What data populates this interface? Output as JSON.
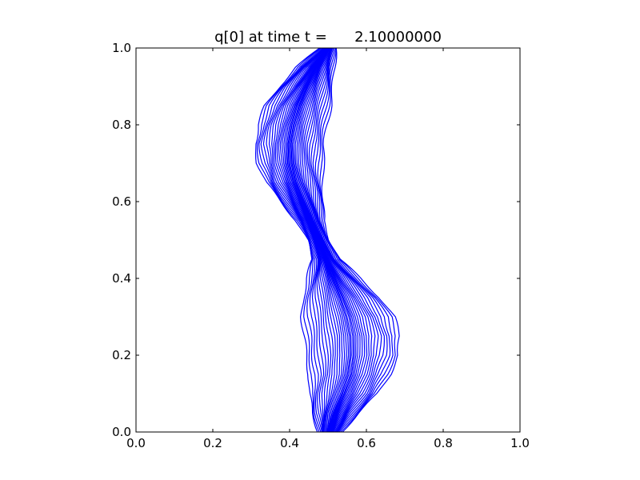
{
  "chart_data": {
    "type": "contour",
    "title": "q[0] at time t =      2.10000000",
    "xlabel": "",
    "ylabel": "",
    "xlim": [
      0.0,
      1.0
    ],
    "ylim": [
      0.0,
      1.0
    ],
    "x_ticks": [
      "0.0",
      "0.2",
      "0.4",
      "0.6",
      "0.8",
      "1.0"
    ],
    "y_ticks": [
      "0.0",
      "0.2",
      "0.4",
      "0.6",
      "0.8",
      "1.0"
    ],
    "line_color": "#0000ff",
    "grid": false,
    "num_contour_levels": 19,
    "centerline": [
      [
        0.505,
        0.0
      ],
      [
        0.52,
        0.05
      ],
      [
        0.54,
        0.1
      ],
      [
        0.556,
        0.15
      ],
      [
        0.563,
        0.2
      ],
      [
        0.562,
        0.25
      ],
      [
        0.552,
        0.3
      ],
      [
        0.535,
        0.35
      ],
      [
        0.515,
        0.4
      ],
      [
        0.495,
        0.45
      ],
      [
        0.475,
        0.5
      ],
      [
        0.453,
        0.55
      ],
      [
        0.432,
        0.6
      ],
      [
        0.413,
        0.65
      ],
      [
        0.402,
        0.7
      ],
      [
        0.4,
        0.75
      ],
      [
        0.408,
        0.8
      ],
      [
        0.422,
        0.85
      ],
      [
        0.443,
        0.9
      ],
      [
        0.467,
        0.95
      ],
      [
        0.5,
        1.0
      ]
    ],
    "halfwidth_max": [
      0.03,
      0.06,
      0.09,
      0.105,
      0.12,
      0.125,
      0.12,
      0.1,
      0.07,
      0.035,
      0.03,
      0.035,
      0.055,
      0.075,
      0.085,
      0.09,
      0.09,
      0.085,
      0.07,
      0.05,
      0.02
    ]
  }
}
